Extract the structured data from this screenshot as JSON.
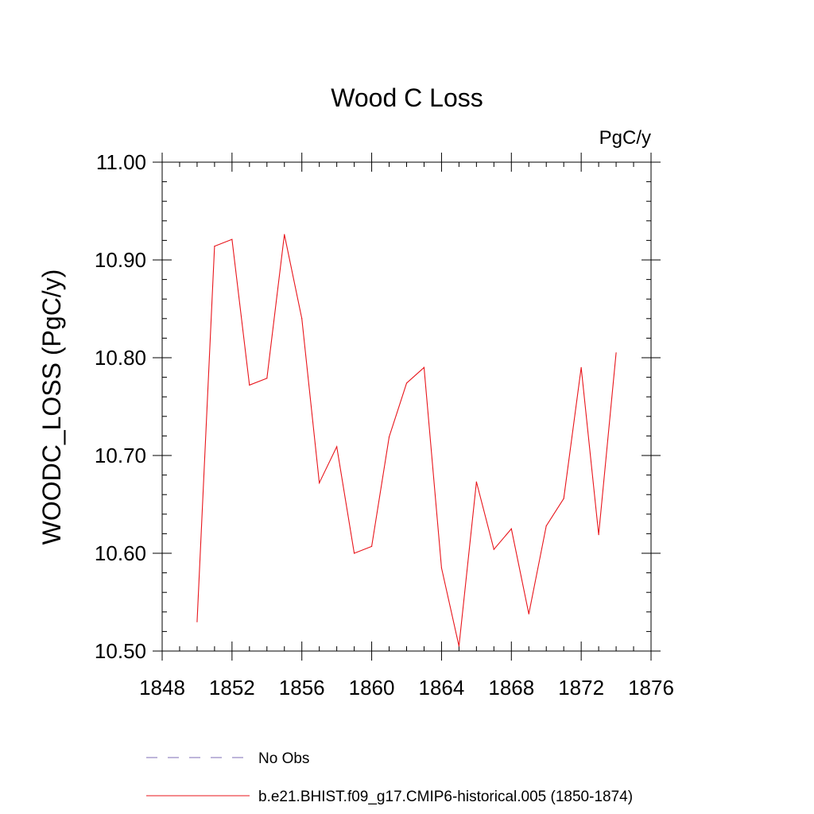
{
  "chart_data": {
    "type": "line",
    "title": "Wood C Loss",
    "units_label": "PgC/y",
    "ylabel": "WOODC_LOSS  (PgC/y)",
    "xlabel": "",
    "xlim": [
      1848,
      1876
    ],
    "ylim": [
      10.5,
      11.0
    ],
    "xticks": [
      1848,
      1852,
      1856,
      1860,
      1864,
      1868,
      1872,
      1876
    ],
    "xtick_labels": [
      "1848",
      "1852",
      "1856",
      "1860",
      "1864",
      "1868",
      "1872",
      "1876"
    ],
    "yticks": [
      10.5,
      10.6,
      10.7,
      10.8,
      10.9,
      11.0
    ],
    "ytick_labels": [
      "10.50",
      "10.60",
      "10.70",
      "10.80",
      "10.90",
      "11.00"
    ],
    "x_minor_step": 1,
    "y_minor_step": 0.02,
    "series": [
      {
        "name": "b.e21.BHIST.f09_g17.CMIP6-historical.005 (1850-1874)",
        "color": "#e8151b",
        "x": [
          1850,
          1851,
          1852,
          1853,
          1854,
          1855,
          1856,
          1857,
          1858,
          1859,
          1860,
          1861,
          1862,
          1863,
          1864,
          1865,
          1866,
          1867,
          1868,
          1869,
          1870,
          1871,
          1872,
          1873,
          1874
        ],
        "values": [
          10.53,
          10.914,
          10.921,
          10.772,
          10.779,
          10.926,
          10.84,
          10.672,
          10.709,
          10.6,
          10.607,
          10.719,
          10.774,
          10.79,
          10.585,
          10.505,
          10.673,
          10.604,
          10.625,
          10.538,
          10.628,
          10.656,
          10.79,
          10.619,
          10.805
        ]
      }
    ],
    "legend": [
      {
        "label": "No Obs",
        "color": "#7d6cb6",
        "style": "dashed"
      },
      {
        "label": "b.e21.BHIST.f09_g17.CMIP6-historical.005 (1850-1874)",
        "color": "#e8151b",
        "style": "solid"
      }
    ]
  }
}
